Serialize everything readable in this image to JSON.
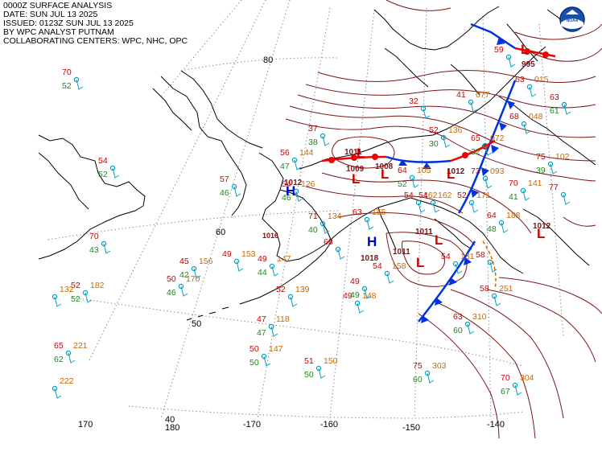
{
  "header": {
    "line1": "0000Z SURFACE ANALYSIS",
    "line2": "DATE: SUN JUL 13 2025",
    "line3": "ISSUED: 0123Z SUN JUL 13 2025",
    "line4": "BY WPC ANALYST PUTNAM",
    "line5": "COLLABORATING CENTERS: WPC, NHC, OPC"
  },
  "logo": {
    "name": "noaa-logo",
    "text": "NOAA"
  },
  "colors": {
    "isobar": "#7a1414",
    "temp": "#cc0000",
    "dew": "#1a8a1a",
    "pressure": "#cc6600",
    "wind": "#00a0c0",
    "cold_front": "#0033dd",
    "warm_front": "#ee0000",
    "high": "#0000cc",
    "low": "#cc0000",
    "grid": "#666666"
  },
  "grid_labels": {
    "lat": [
      "80",
      "60",
      "50"
    ],
    "lon": [
      "170",
      "180",
      "-170",
      "-160",
      "-150",
      "-140"
    ],
    "lon_inner": "40"
  },
  "pressure_centers": [
    {
      "type": "H",
      "value": "1012"
    },
    {
      "type": "H",
      "value": "1018"
    },
    {
      "type": "L",
      "value": "1011"
    },
    {
      "type": "L",
      "value": "1009"
    },
    {
      "type": "L",
      "value": "1008"
    },
    {
      "type": "L",
      "value": "1012"
    },
    {
      "type": "L",
      "value": "1011"
    },
    {
      "type": "L",
      "value": "1011"
    },
    {
      "type": "L",
      "value": "1012"
    },
    {
      "type": "L",
      "value": "995"
    },
    {
      "type": "H",
      "value": "1016"
    }
  ],
  "stations": [
    {
      "t": "70",
      "d": "52",
      "p": ""
    },
    {
      "t": "54",
      "d": "52",
      "p": ""
    },
    {
      "t": "70",
      "d": "43",
      "p": ""
    },
    {
      "t": "52",
      "d": "52",
      "p": "182"
    },
    {
      "t": "",
      "d": "",
      "p": "132"
    },
    {
      "t": "65",
      "d": "62",
      "p": "221"
    },
    {
      "t": "",
      "d": "",
      "p": "222"
    },
    {
      "t": "57",
      "d": "46",
      "p": ""
    },
    {
      "t": "45",
      "d": "42",
      "p": "156"
    },
    {
      "t": "50",
      "d": "46",
      "p": "170"
    },
    {
      "t": "49",
      "d": "",
      "p": "153"
    },
    {
      "t": "49",
      "d": "44",
      "p": "147"
    },
    {
      "t": "52",
      "d": "",
      "p": "139"
    },
    {
      "t": "47",
      "d": "47",
      "p": "118"
    },
    {
      "t": "54",
      "d": "46",
      "p": "126"
    },
    {
      "t": "50",
      "d": "50",
      "p": "147"
    },
    {
      "t": "51",
      "d": "50",
      "p": "150"
    },
    {
      "t": "56",
      "d": "47",
      "p": "144"
    },
    {
      "t": "37",
      "d": "38",
      "p": ""
    },
    {
      "t": "71",
      "d": "40",
      "p": "134"
    },
    {
      "t": "68",
      "d": "",
      "p": ""
    },
    {
      "t": "49",
      "d": "",
      "p": "148"
    },
    {
      "t": "63",
      "d": "",
      "p": "155"
    },
    {
      "t": "64",
      "d": "52",
      "p": "105"
    },
    {
      "t": "54",
      "d": "",
      "p": "162"
    },
    {
      "t": "52",
      "d": "",
      "p": "171"
    },
    {
      "t": "52",
      "d": "30",
      "p": "136"
    },
    {
      "t": "32",
      "d": "",
      "p": ""
    },
    {
      "t": "41",
      "d": "",
      "p": "077"
    },
    {
      "t": "65",
      "d": "32",
      "p": "072"
    },
    {
      "t": "68",
      "d": "",
      "p": "048"
    },
    {
      "t": "75",
      "d": "39",
      "p": "102"
    },
    {
      "t": "70",
      "d": "41",
      "p": "141"
    },
    {
      "t": "77",
      "d": "",
      "p": ""
    },
    {
      "t": "64",
      "d": "48",
      "p": "188"
    },
    {
      "t": "73",
      "d": "",
      "p": "093"
    },
    {
      "t": "58",
      "d": "",
      "p": "251"
    },
    {
      "t": "63",
      "d": "60",
      "p": "310"
    },
    {
      "t": "75",
      "d": "60",
      "p": "303"
    },
    {
      "t": "70",
      "d": "67",
      "p": "304"
    },
    {
      "t": "59",
      "d": "",
      "p": ""
    },
    {
      "t": "63",
      "d": "",
      "p": "015"
    },
    {
      "t": "63",
      "d": "61",
      "p": ""
    },
    {
      "t": "54",
      "d": "",
      "p": "131"
    },
    {
      "t": "58",
      "d": "",
      "p": ""
    },
    {
      "t": "54",
      "d": "",
      "p": "158"
    },
    {
      "t": "49",
      "d": "49",
      "p": ""
    },
    {
      "t": "54",
      "d": "",
      "p": "162"
    }
  ]
}
